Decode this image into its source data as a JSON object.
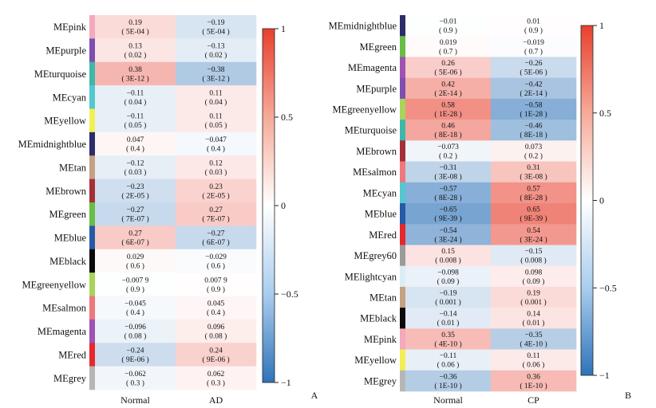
{
  "chart_data": [
    {
      "type": "heatmap",
      "panel_label": "A",
      "columns": [
        "Normal",
        "AD"
      ],
      "modules": [
        "MEpink",
        "MEpurple",
        "MEturquoise",
        "MEcyan",
        "MEyellow",
        "MEmidnightblue",
        "MEtan",
        "MEbrown",
        "MEgreen",
        "MEblue",
        "MEblack",
        "MEgreenyellow",
        "MEsalmon",
        "MEmagenta",
        "MEred",
        "MEgrey"
      ],
      "module_colors": [
        "#f4a9bd",
        "#7e4fb1",
        "#3cb8aa",
        "#54c8cf",
        "#f2ee54",
        "#2c2c6b",
        "#c5a183",
        "#a52f36",
        "#68bd46",
        "#2859a8",
        "#0a0a0a",
        "#a8d459",
        "#f0777b",
        "#9e52b3",
        "#e6272c",
        "#b6b6b6"
      ],
      "values": [
        {
          "r": [
            "0.19",
            "-0.19"
          ],
          "p": [
            "( 5E-04 )",
            "( 5E-04 )"
          ]
        },
        {
          "r": [
            "0.13",
            "-0.13"
          ],
          "p": [
            "( 0.02 )",
            "( 0.02 )"
          ]
        },
        {
          "r": [
            "0.38",
            "-0.38"
          ],
          "p": [
            "( 3E-12 )",
            "( 3E-12 )"
          ]
        },
        {
          "r": [
            "-0.11",
            "0.11"
          ],
          "p": [
            "( 0.04 )",
            "( 0.04 )"
          ]
        },
        {
          "r": [
            "-0.11",
            "0.11"
          ],
          "p": [
            "( 0.05 )",
            "( 0.05 )"
          ]
        },
        {
          "r": [
            "0.047",
            "-0.047"
          ],
          "p": [
            "( 0.4 )",
            "( 0.4 )"
          ]
        },
        {
          "r": [
            "-0.12",
            "0.12"
          ],
          "p": [
            "( 0.03 )",
            "( 0.03 )"
          ]
        },
        {
          "r": [
            "-0.23",
            "0.23"
          ],
          "p": [
            "( 2E-05 )",
            "( 2E-05 )"
          ]
        },
        {
          "r": [
            "-0.27",
            "0.27"
          ],
          "p": [
            "( 7E-07 )",
            "( 7E-07 )"
          ]
        },
        {
          "r": [
            "0.27",
            "-0.27"
          ],
          "p": [
            "( 6E-07 )",
            "( 6E-07 )"
          ]
        },
        {
          "r": [
            "0.029",
            "-0.029"
          ],
          "p": [
            "( 0.6 )",
            "( 0.6 )"
          ]
        },
        {
          "r": [
            "-0.007 9",
            "0.007 9"
          ],
          "p": [
            "( 0.9 )",
            "( 0.9 )"
          ]
        },
        {
          "r": [
            "-0.045",
            "0.045"
          ],
          "p": [
            "( 0.4 )",
            "( 0.4 )"
          ]
        },
        {
          "r": [
            "-0.096",
            "0.096"
          ],
          "p": [
            "( 0.08 )",
            "( 0.08 )"
          ]
        },
        {
          "r": [
            "-0.24",
            "0.24"
          ],
          "p": [
            "( 9E-06 )",
            "( 9E-06 )"
          ]
        },
        {
          "r": [
            "-0.062",
            "0.062"
          ],
          "p": [
            "( 0.3 )",
            "( 0.3 )"
          ]
        }
      ],
      "colorbar": {
        "range": [
          -1,
          1
        ],
        "ticks": [
          "1",
          "0.5",
          "0",
          "-0.5",
          "-1"
        ],
        "low_color": "#2f73b8",
        "mid_color": "#ffffff",
        "high_color": "#e8402e"
      }
    },
    {
      "type": "heatmap",
      "panel_label": "B",
      "columns": [
        "Normal",
        "CP"
      ],
      "modules": [
        "MEmidnightblue",
        "MEgreen",
        "MEmagenta",
        "MEpurple",
        "MEgreenyellow",
        "MEturquoise",
        "MEbrown",
        "MEsalmon",
        "MEcyan",
        "MEblue",
        "MEred",
        "MEgrey60",
        "MElightcyan",
        "MEtan",
        "MEblack",
        "MEpink",
        "MEyellow",
        "MEgrey"
      ],
      "module_colors": [
        "#2c2c6b",
        "#68bd46",
        "#9e52b3",
        "#7e4fb1",
        "#a8d459",
        "#3cb8aa",
        "#a52f36",
        "#f0777b",
        "#54c8cf",
        "#2859a8",
        "#e6272c",
        "#9b9b9b",
        "#dceef5",
        "#c5a183",
        "#0a0a0a",
        "#f4a9bd",
        "#f2ee54",
        "#b6b6b6"
      ],
      "values": [
        {
          "r": [
            "-0.01",
            "0.01"
          ],
          "p": [
            "( 0.9 )",
            "( 0.9 )"
          ]
        },
        {
          "r": [
            "0.019",
            "-0.019"
          ],
          "p": [
            "( 0.7 )",
            "( 0.7 )"
          ]
        },
        {
          "r": [
            "0.26",
            "-0.26"
          ],
          "p": [
            "( 5E-06 )",
            "( 5E-06 )"
          ]
        },
        {
          "r": [
            "0.42",
            "-0.42"
          ],
          "p": [
            "( 2E-14 )",
            "( 2E-14 )"
          ]
        },
        {
          "r": [
            "0.58",
            "-0.58"
          ],
          "p": [
            "( 1E-28 )",
            "( 1E-28 )"
          ]
        },
        {
          "r": [
            "0.46",
            "-0.46"
          ],
          "p": [
            "( 8E-18 )",
            "( 8E-18 )"
          ]
        },
        {
          "r": [
            "-0.073",
            "0.073"
          ],
          "p": [
            "( 0.2 )",
            "( 0.2 )"
          ]
        },
        {
          "r": [
            "-0.31",
            "0.31"
          ],
          "p": [
            "( 3E-08 )",
            "( 3E-08 )"
          ]
        },
        {
          "r": [
            "-0.57",
            "0.57"
          ],
          "p": [
            "( 8E-28 )",
            "( 8E-28 )"
          ]
        },
        {
          "r": [
            "-0.65",
            "0.65"
          ],
          "p": [
            "( 9E-39 )",
            "( 9E-39 )"
          ]
        },
        {
          "r": [
            "-0.54",
            "0.54"
          ],
          "p": [
            "( 3E-24 )",
            "( 3E-24 )"
          ]
        },
        {
          "r": [
            "0.15",
            "-0.15"
          ],
          "p": [
            "( 0.008 )",
            "( 0.008 )"
          ]
        },
        {
          "r": [
            "-0.098",
            "0.098"
          ],
          "p": [
            "( 0.09 )",
            "( 0.09 )"
          ]
        },
        {
          "r": [
            "-0.19",
            "0.19"
          ],
          "p": [
            "( 0.001 )",
            "( 0.001 )"
          ]
        },
        {
          "r": [
            "-0.14",
            "0.14"
          ],
          "p": [
            "( 0.01 )",
            "( 0.01 )"
          ]
        },
        {
          "r": [
            "0.35",
            "-0.35"
          ],
          "p": [
            "( 4E-10 )",
            "( 4E-10 )"
          ]
        },
        {
          "r": [
            "-0.11",
            "0.11"
          ],
          "p": [
            "( 0.06 )",
            "( 0.06 )"
          ]
        },
        {
          "r": [
            "-0.36",
            "0.36"
          ],
          "p": [
            "( 1E-10 )",
            "( 1E-10 )"
          ]
        }
      ],
      "colorbar": {
        "range": [
          -1,
          1
        ],
        "ticks": [
          "1",
          "0.5",
          "0",
          "-0.5",
          "-1"
        ],
        "low_color": "#2f73b8",
        "mid_color": "#ffffff",
        "high_color": "#e8402e"
      }
    }
  ]
}
